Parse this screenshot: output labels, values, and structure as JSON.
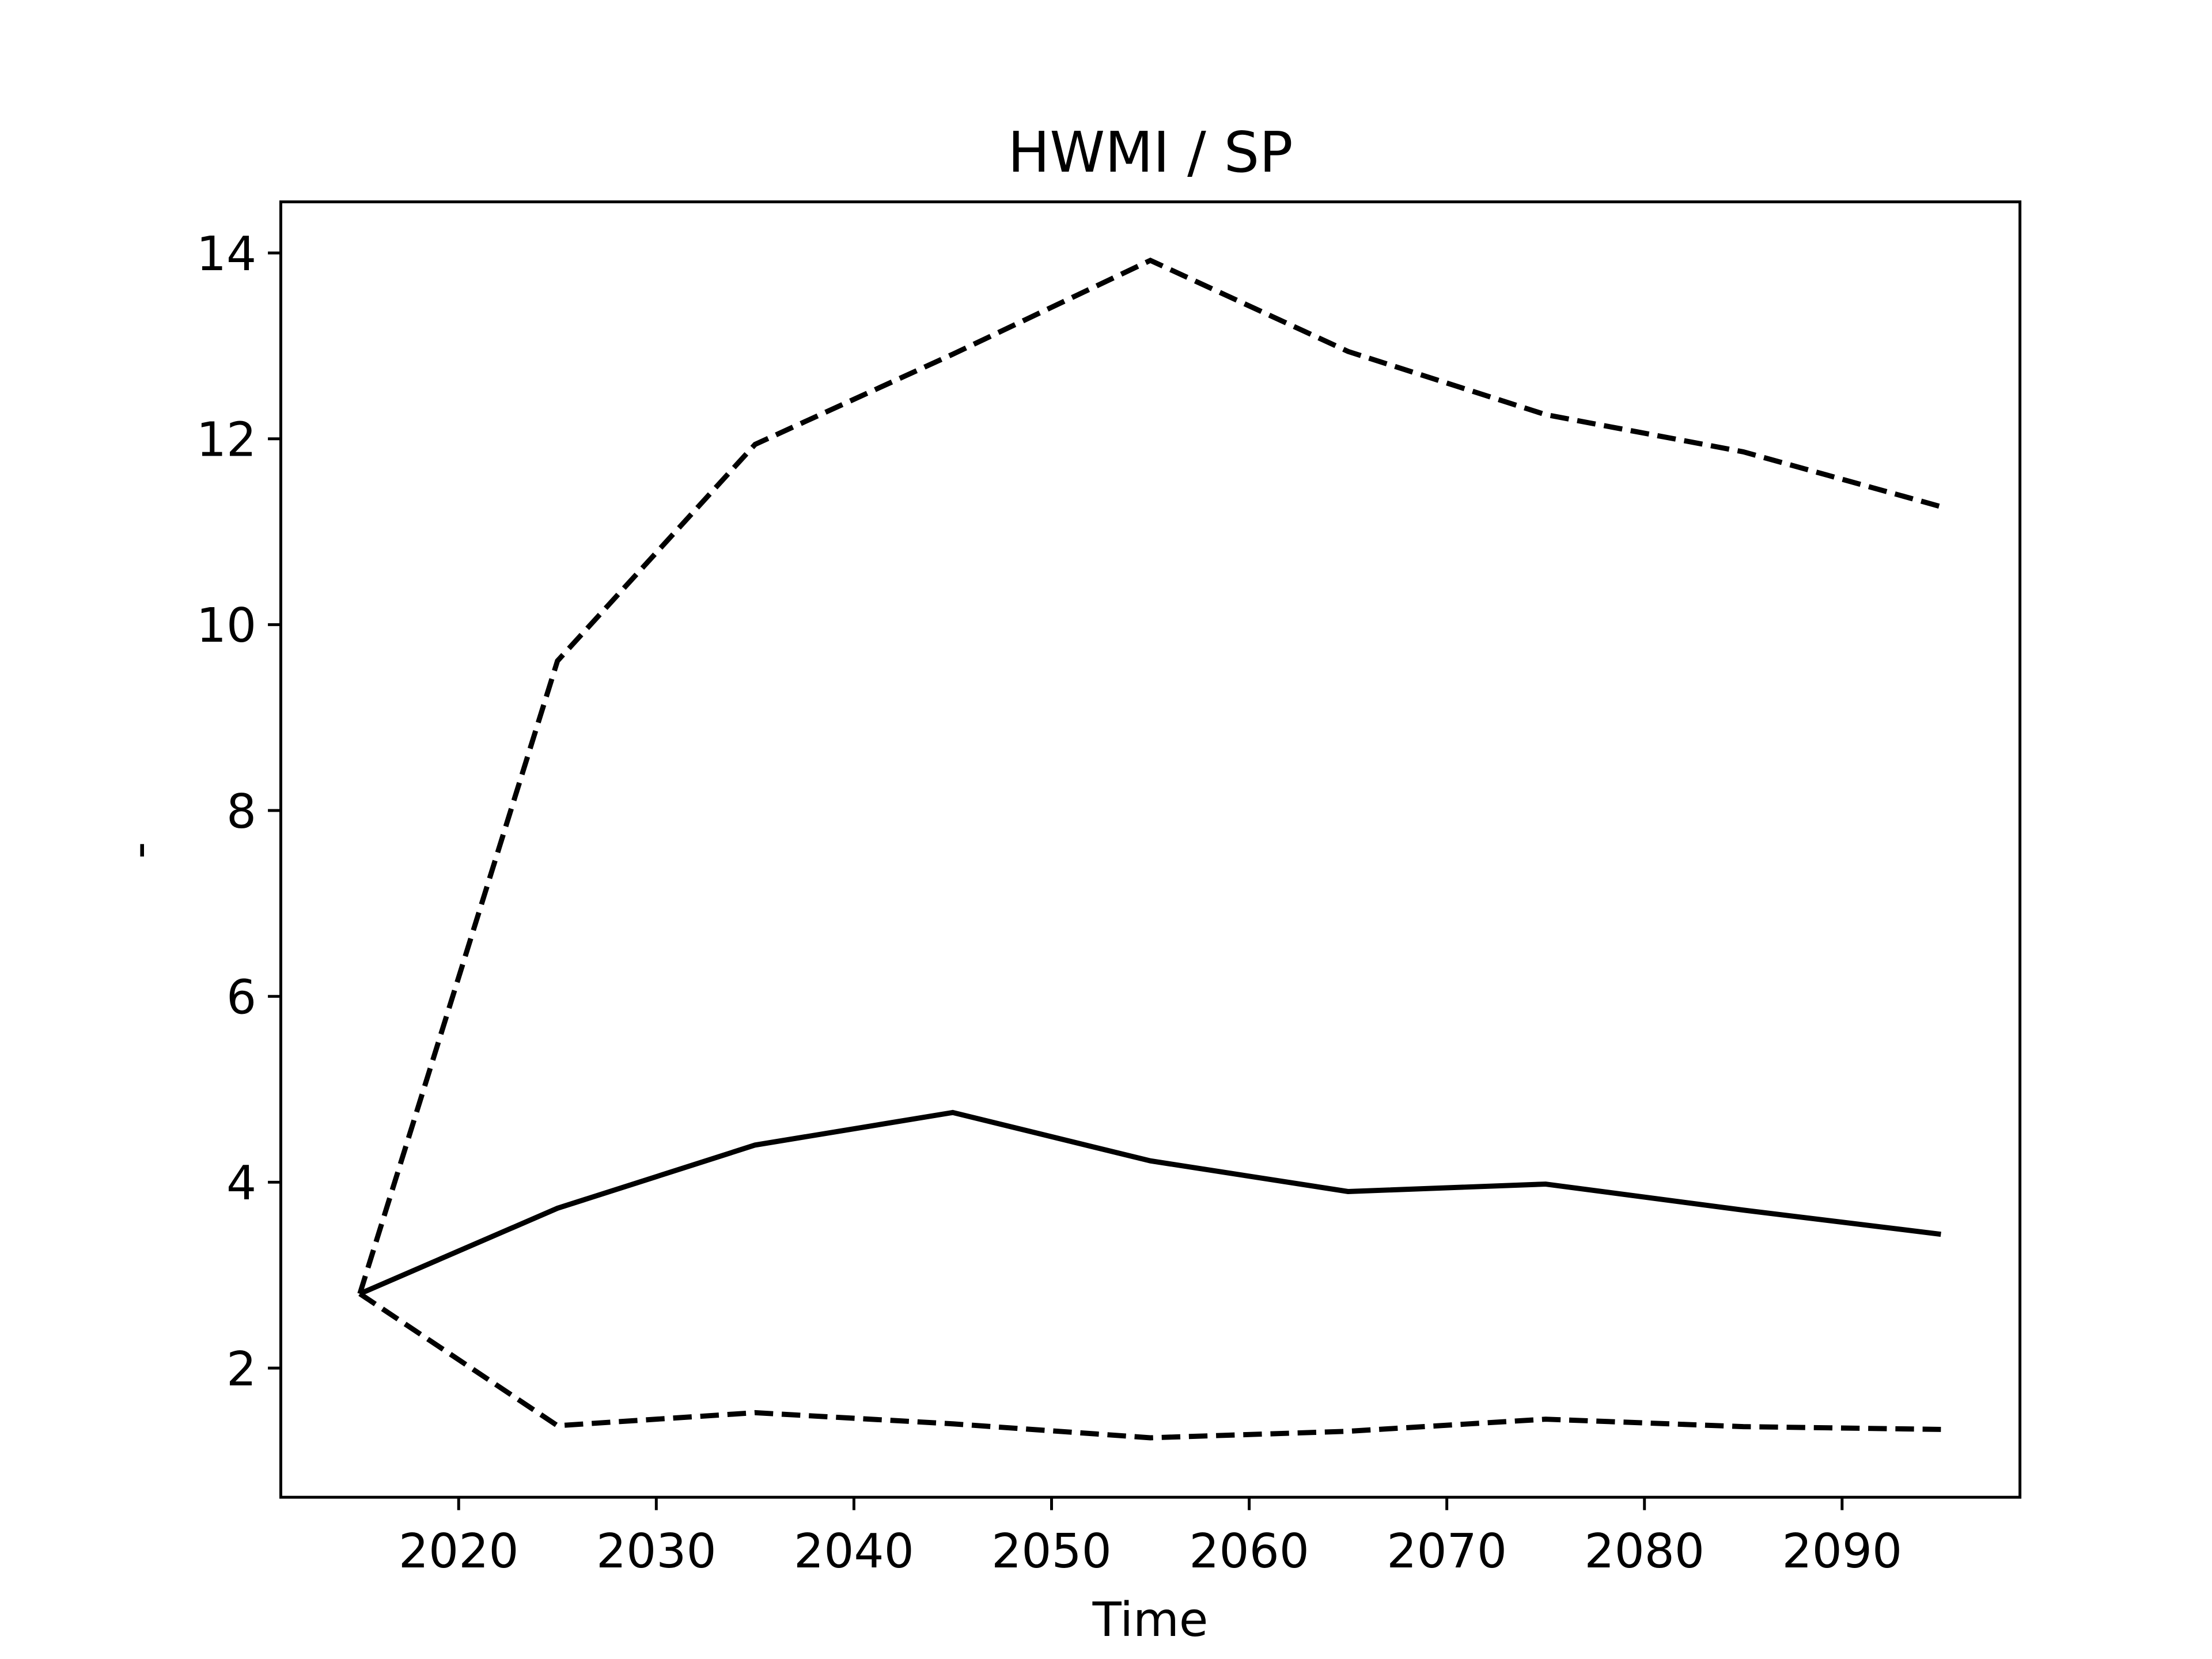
{
  "chart_data": {
    "type": "line",
    "title": "HWMI / SP",
    "xlabel": "Time",
    "ylabel": "-",
    "x": [
      2015,
      2025,
      2035,
      2045,
      2055,
      2065,
      2075,
      2085,
      2095
    ],
    "series": [
      {
        "color": "#000000",
        "dash": false,
        "values": [
          2.8,
          3.72,
          4.4,
          4.75,
          4.23,
          3.9,
          3.98,
          3.7,
          3.44
        ]
      },
      {
        "color": "#000000",
        "dash": true,
        "values": [
          2.8,
          9.61,
          11.94,
          12.91,
          13.92,
          12.94,
          12.26,
          11.86,
          11.27
        ]
      },
      {
        "color": "#000000",
        "dash": true,
        "values": [
          2.8,
          1.38,
          1.52,
          1.4,
          1.25,
          1.32,
          1.45,
          1.37,
          1.34
        ]
      }
    ],
    "xlim": [
      2011,
      2099
    ],
    "xticks": [
      2020,
      2030,
      2040,
      2050,
      2060,
      2070,
      2080,
      2090
    ],
    "ylim": [
      0.61,
      14.55
    ],
    "yticks": [
      2,
      4,
      6,
      8,
      10,
      12,
      14
    ],
    "grid": false
  }
}
